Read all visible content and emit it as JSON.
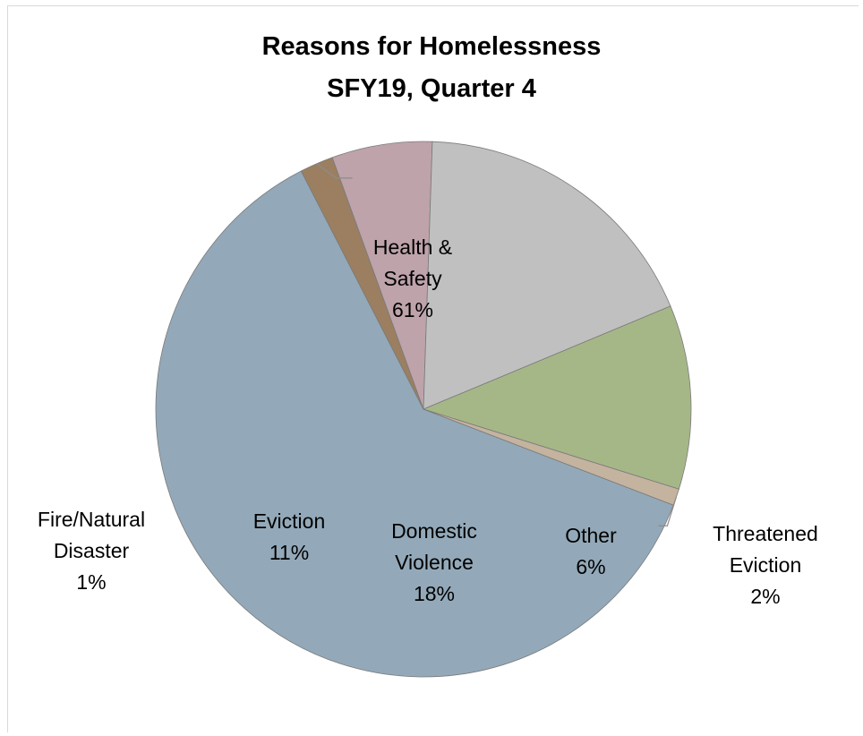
{
  "chart_data": {
    "type": "pie",
    "title_lines": [
      "Reasons for Homelessness",
      "SFY19, Quarter 4"
    ],
    "slices": [
      {
        "name": "Health & Safety",
        "label_lines": [
          "Health &",
          "Safety",
          "61%"
        ],
        "value": 61,
        "color": "#93a9b9"
      },
      {
        "name": "Threatened Eviction",
        "label_lines": [
          "Threatened",
          "Eviction",
          "2%"
        ],
        "value": 2,
        "color": "#9b7f60"
      },
      {
        "name": "Other",
        "label_lines": [
          "Other",
          "6%"
        ],
        "value": 6,
        "color": "#bea3ab"
      },
      {
        "name": "Domestic Violence",
        "label_lines": [
          "Domestic",
          "Violence",
          "18%"
        ],
        "value": 18,
        "color": "#c0c0c0"
      },
      {
        "name": "Eviction",
        "label_lines": [
          "Eviction",
          "11%"
        ],
        "value": 11,
        "color": "#a6b787"
      },
      {
        "name": "Fire/Natural Disaster",
        "label_lines": [
          "Fire/Natural",
          "Disaster",
          "1%"
        ],
        "value": 1,
        "color": "#c4b39f"
      }
    ],
    "legend": "none"
  }
}
